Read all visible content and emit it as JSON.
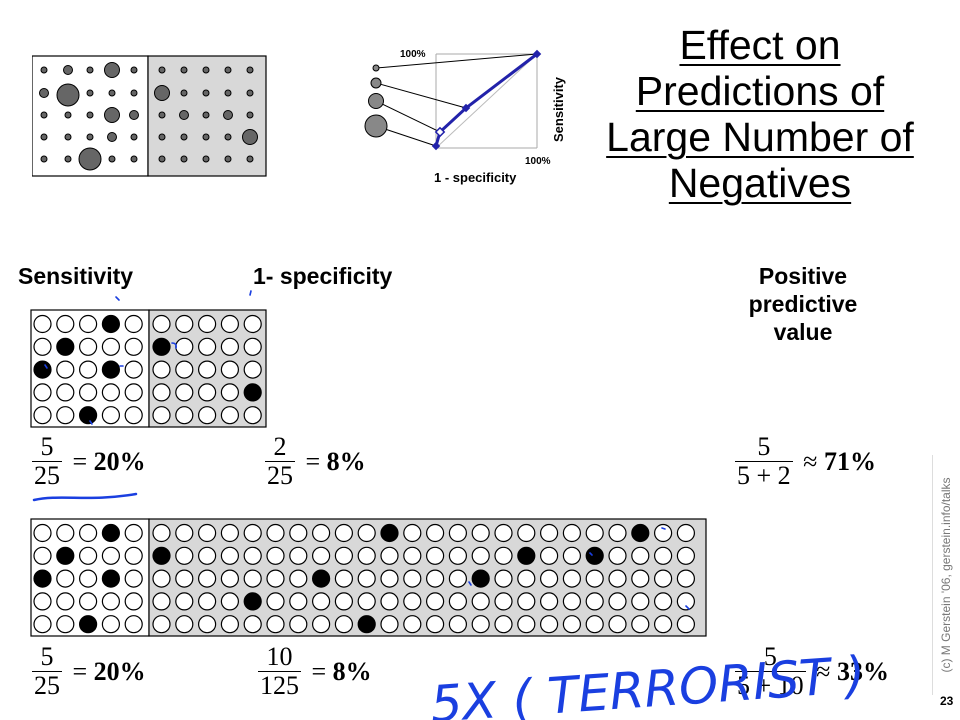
{
  "title": "Effect on Predictions of Large Number of Negatives",
  "roc": {
    "y_max_label": "100%",
    "x_max_label": "100%",
    "y_axis_label": "Sensitivity",
    "x_axis_label": "1 - specificity"
  },
  "headers": {
    "sensitivity": "Sensitivity",
    "one_minus_specificity": "1- specificity",
    "ppv": "Positive predictive value"
  },
  "case1": {
    "sens": {
      "num": "5",
      "den": "25",
      "result": "20%"
    },
    "spec": {
      "num": "2",
      "den": "25",
      "result": "8%"
    },
    "ppv": {
      "num": "5",
      "den": "5 + 2",
      "result": "71%"
    }
  },
  "case2": {
    "sens": {
      "num": "5",
      "den": "25",
      "result": "20%"
    },
    "spec": {
      "num": "10",
      "den": "125",
      "result": "8%"
    },
    "ppv": {
      "num": "5",
      "den": "5 + 10",
      "result": "33%"
    }
  },
  "annotation": "5X ( TERRORIST )",
  "credit": "(c) M Gerstein '06, gerstein.info/talks",
  "page_number": "23",
  "colors": {
    "accent": "#2222aa",
    "panel_gray": "#d8d8d8",
    "ink_blue": "#1a3fe0"
  }
}
